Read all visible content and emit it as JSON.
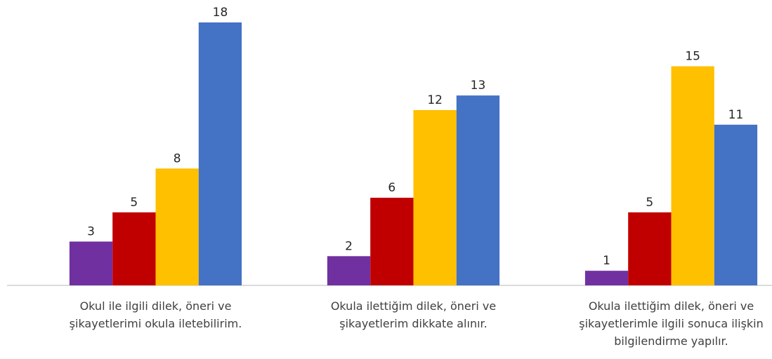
{
  "chart_data": {
    "type": "bar",
    "categories": [
      "Okul ile ilgili dilek, öneri ve şikayetlerimi okula iletebilirim.",
      "Okula ilettiğim dilek, öneri ve şikayetlerim dikkate alınır.",
      "Okula ilettiğim dilek, öneri ve şikayetlerimle ilgili sonuca ilişkin bilgilendirme yapılır."
    ],
    "series": [
      {
        "color": "#7030a0",
        "values": [
          3,
          2,
          1
        ]
      },
      {
        "color": "#c00000",
        "values": [
          5,
          6,
          5
        ]
      },
      {
        "color": "#ffc000",
        "values": [
          8,
          12,
          15
        ]
      },
      {
        "color": "#4472c4",
        "values": [
          18,
          13,
          11
        ]
      }
    ],
    "ylim": [
      0,
      18
    ],
    "grid": false
  }
}
